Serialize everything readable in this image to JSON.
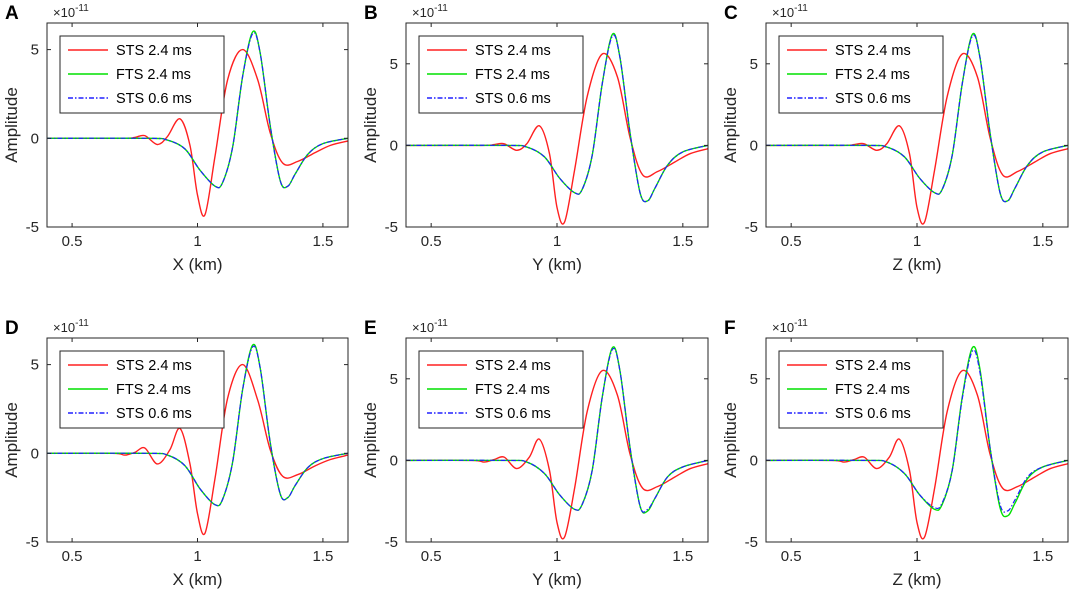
{
  "figure": {
    "legend": [
      {
        "label": "STS 2.4 ms",
        "color": "#ff2020",
        "style": "solid"
      },
      {
        "label": "FTS 2.4 ms",
        "color": "#00e000",
        "style": "solid"
      },
      {
        "label": "STS 0.6 ms",
        "color": "#2020ff",
        "style": "dashdot"
      }
    ]
  },
  "chart_data": [
    {
      "type": "line",
      "panel": "A",
      "xlabel": "X (km)",
      "ylabel": "Amplitude",
      "exponent": "×10",
      "exponent_power": "-11",
      "xlim": [
        0.4,
        1.6
      ],
      "ylim": [
        -5,
        6.5
      ],
      "xticks": [
        0.5,
        1,
        1.5
      ],
      "xtick_labels": [
        "0.5",
        "1",
        "1.5"
      ],
      "yticks": [
        -5,
        0,
        5
      ],
      "ytick_labels": [
        "-5",
        "0",
        "5"
      ],
      "series": [
        {
          "name": "STS 2.4 ms",
          "x": [
            0.4,
            0.7,
            0.75,
            0.79,
            0.84,
            0.88,
            0.93,
            0.97,
            1.0,
            1.03,
            1.07,
            1.12,
            1.18,
            1.24,
            1.29,
            1.34,
            1.4,
            1.47,
            1.53,
            1.6
          ],
          "y": [
            0,
            0,
            0.05,
            0.15,
            -0.35,
            0.1,
            1.1,
            -0.4,
            -3.2,
            -4.3,
            -1.0,
            3.3,
            5.0,
            3.3,
            0.3,
            -1.4,
            -1.3,
            -0.8,
            -0.4,
            -0.15
          ]
        },
        {
          "name": "FTS 2.4 ms",
          "x": [
            0.4,
            0.8,
            0.88,
            0.95,
            1.01,
            1.07,
            1.1,
            1.14,
            1.18,
            1.22,
            1.25,
            1.29,
            1.33,
            1.36,
            1.39,
            1.44,
            1.5,
            1.6
          ],
          "y": [
            0,
            0,
            -0.1,
            -0.6,
            -1.8,
            -2.7,
            -2.5,
            -0.5,
            3.5,
            6.0,
            4.8,
            0.7,
            -2.4,
            -2.7,
            -2.0,
            -0.9,
            -0.3,
            0
          ]
        },
        {
          "name": "STS 0.6 ms",
          "x": [
            0.4,
            0.8,
            0.88,
            0.95,
            1.01,
            1.07,
            1.1,
            1.14,
            1.18,
            1.22,
            1.25,
            1.29,
            1.33,
            1.36,
            1.39,
            1.44,
            1.5,
            1.6
          ],
          "y": [
            0,
            0,
            -0.1,
            -0.6,
            -1.8,
            -2.7,
            -2.5,
            -0.5,
            3.5,
            5.9,
            4.8,
            0.7,
            -2.4,
            -2.7,
            -2.0,
            -0.9,
            -0.3,
            0
          ]
        }
      ]
    },
    {
      "type": "line",
      "panel": "B",
      "xlabel": "Y (km)",
      "ylabel": "Amplitude",
      "exponent": "×10",
      "exponent_power": "-11",
      "xlim": [
        0.4,
        1.6
      ],
      "ylim": [
        -5,
        7.5
      ],
      "xticks": [
        0.5,
        1,
        1.5
      ],
      "xtick_labels": [
        "0.5",
        "1",
        "1.5"
      ],
      "yticks": [
        -5,
        0,
        5
      ],
      "ytick_labels": [
        "-5",
        "0",
        "5"
      ],
      "series": [
        {
          "name": "STS 2.4 ms",
          "x": [
            0.4,
            0.7,
            0.75,
            0.79,
            0.84,
            0.88,
            0.93,
            0.97,
            1.0,
            1.03,
            1.07,
            1.12,
            1.18,
            1.24,
            1.29,
            1.34,
            1.4,
            1.47,
            1.53,
            1.6
          ],
          "y": [
            0,
            0,
            0.05,
            0.1,
            -0.3,
            0.1,
            1.2,
            -0.5,
            -3.8,
            -4.7,
            -1.5,
            3.0,
            5.6,
            4.2,
            0.5,
            -1.8,
            -1.6,
            -1.0,
            -0.5,
            -0.2
          ]
        },
        {
          "name": "FTS 2.4 ms",
          "x": [
            0.4,
            0.8,
            0.88,
            0.95,
            1.01,
            1.07,
            1.1,
            1.14,
            1.18,
            1.22,
            1.25,
            1.29,
            1.33,
            1.36,
            1.39,
            1.44,
            1.5,
            1.6
          ],
          "y": [
            0,
            0,
            -0.1,
            -0.7,
            -2.0,
            -2.9,
            -2.7,
            -0.6,
            3.8,
            6.8,
            5.4,
            0.8,
            -2.9,
            -3.4,
            -2.6,
            -1.2,
            -0.4,
            0
          ]
        },
        {
          "name": "STS 0.6 ms",
          "x": [
            0.4,
            0.8,
            0.88,
            0.95,
            1.01,
            1.07,
            1.1,
            1.14,
            1.18,
            1.22,
            1.25,
            1.29,
            1.33,
            1.36,
            1.39,
            1.44,
            1.5,
            1.6
          ],
          "y": [
            0,
            0,
            -0.1,
            -0.7,
            -2.0,
            -2.9,
            -2.7,
            -0.6,
            3.8,
            6.7,
            5.4,
            0.8,
            -2.9,
            -3.4,
            -2.6,
            -1.2,
            -0.4,
            0
          ]
        }
      ]
    },
    {
      "type": "line",
      "panel": "C",
      "xlabel": "Z (km)",
      "ylabel": "Amplitude",
      "exponent": "×10",
      "exponent_power": "-11",
      "xlim": [
        0.4,
        1.6
      ],
      "ylim": [
        -5,
        7.5
      ],
      "xticks": [
        0.5,
        1,
        1.5
      ],
      "xtick_labels": [
        "0.5",
        "1",
        "1.5"
      ],
      "yticks": [
        -5,
        0,
        5
      ],
      "ytick_labels": [
        "-5",
        "0",
        "5"
      ],
      "series": [
        {
          "name": "STS 2.4 ms",
          "x": [
            0.4,
            0.7,
            0.75,
            0.79,
            0.84,
            0.88,
            0.93,
            0.97,
            1.0,
            1.03,
            1.07,
            1.12,
            1.18,
            1.24,
            1.29,
            1.34,
            1.4,
            1.47,
            1.53,
            1.6
          ],
          "y": [
            0,
            0,
            0.05,
            0.1,
            -0.3,
            0.1,
            1.2,
            -0.5,
            -3.8,
            -4.7,
            -1.5,
            3.0,
            5.6,
            4.2,
            0.5,
            -1.8,
            -1.6,
            -1.0,
            -0.5,
            -0.2
          ]
        },
        {
          "name": "FTS 2.4 ms",
          "x": [
            0.4,
            0.8,
            0.88,
            0.95,
            1.01,
            1.07,
            1.1,
            1.14,
            1.18,
            1.22,
            1.25,
            1.29,
            1.33,
            1.36,
            1.39,
            1.44,
            1.5,
            1.6
          ],
          "y": [
            0,
            0,
            -0.1,
            -0.7,
            -2.0,
            -2.9,
            -2.7,
            -0.6,
            3.8,
            6.8,
            5.4,
            0.8,
            -2.9,
            -3.4,
            -2.6,
            -1.2,
            -0.4,
            0
          ]
        },
        {
          "name": "STS 0.6 ms",
          "x": [
            0.4,
            0.8,
            0.88,
            0.95,
            1.01,
            1.07,
            1.1,
            1.14,
            1.18,
            1.22,
            1.25,
            1.29,
            1.33,
            1.36,
            1.39,
            1.44,
            1.5,
            1.6
          ],
          "y": [
            0,
            0,
            -0.1,
            -0.7,
            -2.0,
            -2.9,
            -2.7,
            -0.6,
            3.8,
            6.7,
            5.4,
            0.8,
            -2.9,
            -3.4,
            -2.6,
            -1.2,
            -0.4,
            0
          ]
        }
      ]
    },
    {
      "type": "line",
      "panel": "D",
      "xlabel": "X (km)",
      "ylabel": "Amplitude",
      "exponent": "×10",
      "exponent_power": "-11",
      "xlim": [
        0.4,
        1.6
      ],
      "ylim": [
        -5,
        6.5
      ],
      "xticks": [
        0.5,
        1,
        1.5
      ],
      "xtick_labels": [
        "0.5",
        "1",
        "1.5"
      ],
      "yticks": [
        -5,
        0,
        5
      ],
      "ytick_labels": [
        "-5",
        "0",
        "5"
      ],
      "series": [
        {
          "name": "STS 2.4 ms",
          "x": [
            0.4,
            0.66,
            0.71,
            0.75,
            0.79,
            0.84,
            0.89,
            0.93,
            0.97,
            1.0,
            1.03,
            1.07,
            1.12,
            1.18,
            1.24,
            1.29,
            1.34,
            1.4,
            1.47,
            1.53,
            1.6
          ],
          "y": [
            0,
            0,
            -0.1,
            0.05,
            0.3,
            -0.6,
            0.2,
            1.4,
            -0.6,
            -3.4,
            -4.5,
            -1.4,
            3.1,
            5.0,
            3.0,
            0.2,
            -1.3,
            -1.2,
            -0.7,
            -0.35,
            -0.1
          ]
        },
        {
          "name": "FTS 2.4 ms",
          "x": [
            0.4,
            0.8,
            0.88,
            0.95,
            1.01,
            1.07,
            1.1,
            1.14,
            1.18,
            1.22,
            1.25,
            1.29,
            1.33,
            1.36,
            1.39,
            1.44,
            1.5,
            1.6
          ],
          "y": [
            0,
            0,
            -0.1,
            -0.7,
            -2.0,
            -2.9,
            -2.6,
            -0.5,
            3.6,
            6.1,
            4.8,
            0.6,
            -2.3,
            -2.5,
            -1.8,
            -0.8,
            -0.3,
            0
          ]
        },
        {
          "name": "STS 0.6 ms",
          "x": [
            0.4,
            0.8,
            0.88,
            0.95,
            1.01,
            1.07,
            1.1,
            1.14,
            1.18,
            1.22,
            1.25,
            1.29,
            1.33,
            1.36,
            1.39,
            1.44,
            1.5,
            1.6
          ],
          "y": [
            0,
            0,
            -0.1,
            -0.7,
            -2.0,
            -2.9,
            -2.6,
            -0.5,
            3.6,
            6.0,
            4.8,
            0.6,
            -2.3,
            -2.5,
            -1.8,
            -0.8,
            -0.3,
            0
          ]
        }
      ]
    },
    {
      "type": "line",
      "panel": "E",
      "xlabel": "Y (km)",
      "ylabel": "Amplitude",
      "exponent": "×10",
      "exponent_power": "-11",
      "xlim": [
        0.4,
        1.6
      ],
      "ylim": [
        -5,
        7.5
      ],
      "xticks": [
        0.5,
        1,
        1.5
      ],
      "xtick_labels": [
        "0.5",
        "1",
        "1.5"
      ],
      "yticks": [
        -5,
        0,
        5
      ],
      "ytick_labels": [
        "-5",
        "0",
        "5"
      ],
      "series": [
        {
          "name": "STS 2.4 ms",
          "x": [
            0.4,
            0.66,
            0.71,
            0.75,
            0.79,
            0.84,
            0.89,
            0.93,
            0.97,
            1.0,
            1.03,
            1.07,
            1.12,
            1.18,
            1.24,
            1.29,
            1.34,
            1.4,
            1.47,
            1.53,
            1.6
          ],
          "y": [
            0,
            0,
            -0.1,
            0.05,
            0.2,
            -0.5,
            0.2,
            1.3,
            -0.6,
            -3.8,
            -4.7,
            -1.7,
            3.0,
            5.5,
            4.0,
            0.4,
            -1.7,
            -1.6,
            -1.0,
            -0.5,
            -0.2
          ]
        },
        {
          "name": "FTS 2.4 ms",
          "x": [
            0.4,
            0.8,
            0.88,
            0.95,
            1.01,
            1.07,
            1.1,
            1.14,
            1.18,
            1.22,
            1.25,
            1.29,
            1.33,
            1.36,
            1.39,
            1.44,
            1.5,
            1.6
          ],
          "y": [
            0,
            0,
            -0.1,
            -0.8,
            -2.1,
            -3.0,
            -2.7,
            -0.6,
            3.9,
            6.9,
            5.5,
            0.8,
            -2.8,
            -3.1,
            -2.3,
            -1.0,
            -0.4,
            0
          ]
        },
        {
          "name": "STS 0.6 ms",
          "x": [
            0.4,
            0.8,
            0.88,
            0.95,
            1.01,
            1.07,
            1.1,
            1.14,
            1.18,
            1.22,
            1.25,
            1.29,
            1.33,
            1.36,
            1.39,
            1.44,
            1.5,
            1.6
          ],
          "y": [
            0,
            0,
            -0.1,
            -0.8,
            -2.1,
            -3.0,
            -2.7,
            -0.6,
            3.9,
            6.8,
            5.5,
            0.8,
            -2.8,
            -3.0,
            -2.3,
            -1.0,
            -0.4,
            0
          ]
        }
      ]
    },
    {
      "type": "line",
      "panel": "F",
      "xlabel": "Z (km)",
      "ylabel": "Amplitude",
      "exponent": "×10",
      "exponent_power": "-11",
      "xlim": [
        0.4,
        1.6
      ],
      "ylim": [
        -5,
        7.5
      ],
      "xticks": [
        0.5,
        1,
        1.5
      ],
      "xtick_labels": [
        "0.5",
        "1",
        "1.5"
      ],
      "yticks": [
        -5,
        0,
        5
      ],
      "ytick_labels": [
        "-5",
        "0",
        "5"
      ],
      "series": [
        {
          "name": "STS 2.4 ms",
          "x": [
            0.4,
            0.66,
            0.71,
            0.75,
            0.79,
            0.84,
            0.89,
            0.93,
            0.97,
            1.0,
            1.03,
            1.07,
            1.12,
            1.18,
            1.24,
            1.29,
            1.34,
            1.4,
            1.47,
            1.53,
            1.6
          ],
          "y": [
            0,
            0,
            -0.1,
            0.05,
            0.2,
            -0.5,
            0.2,
            1.3,
            -0.6,
            -3.8,
            -4.7,
            -1.7,
            3.0,
            5.5,
            4.0,
            0.4,
            -1.7,
            -1.6,
            -1.0,
            -0.5,
            -0.2
          ]
        },
        {
          "name": "FTS 2.4 ms",
          "x": [
            0.4,
            0.8,
            0.88,
            0.95,
            1.01,
            1.07,
            1.1,
            1.14,
            1.18,
            1.22,
            1.25,
            1.29,
            1.33,
            1.36,
            1.39,
            1.44,
            1.5,
            1.6
          ],
          "y": [
            0,
            0,
            -0.1,
            -0.8,
            -2.1,
            -3.0,
            -2.7,
            -0.6,
            3.9,
            6.9,
            5.6,
            0.8,
            -2.9,
            -3.4,
            -2.6,
            -1.1,
            -0.4,
            0
          ]
        },
        {
          "name": "STS 0.6 ms",
          "x": [
            0.4,
            0.8,
            0.88,
            0.95,
            1.01,
            1.07,
            1.1,
            1.14,
            1.18,
            1.22,
            1.25,
            1.29,
            1.33,
            1.36,
            1.39,
            1.44,
            1.5,
            1.6
          ],
          "y": [
            0,
            0,
            -0.1,
            -0.8,
            -2.1,
            -2.9,
            -2.6,
            -0.6,
            3.8,
            6.7,
            5.4,
            0.8,
            -2.7,
            -3.1,
            -2.4,
            -1.0,
            -0.4,
            0
          ]
        }
      ]
    }
  ]
}
